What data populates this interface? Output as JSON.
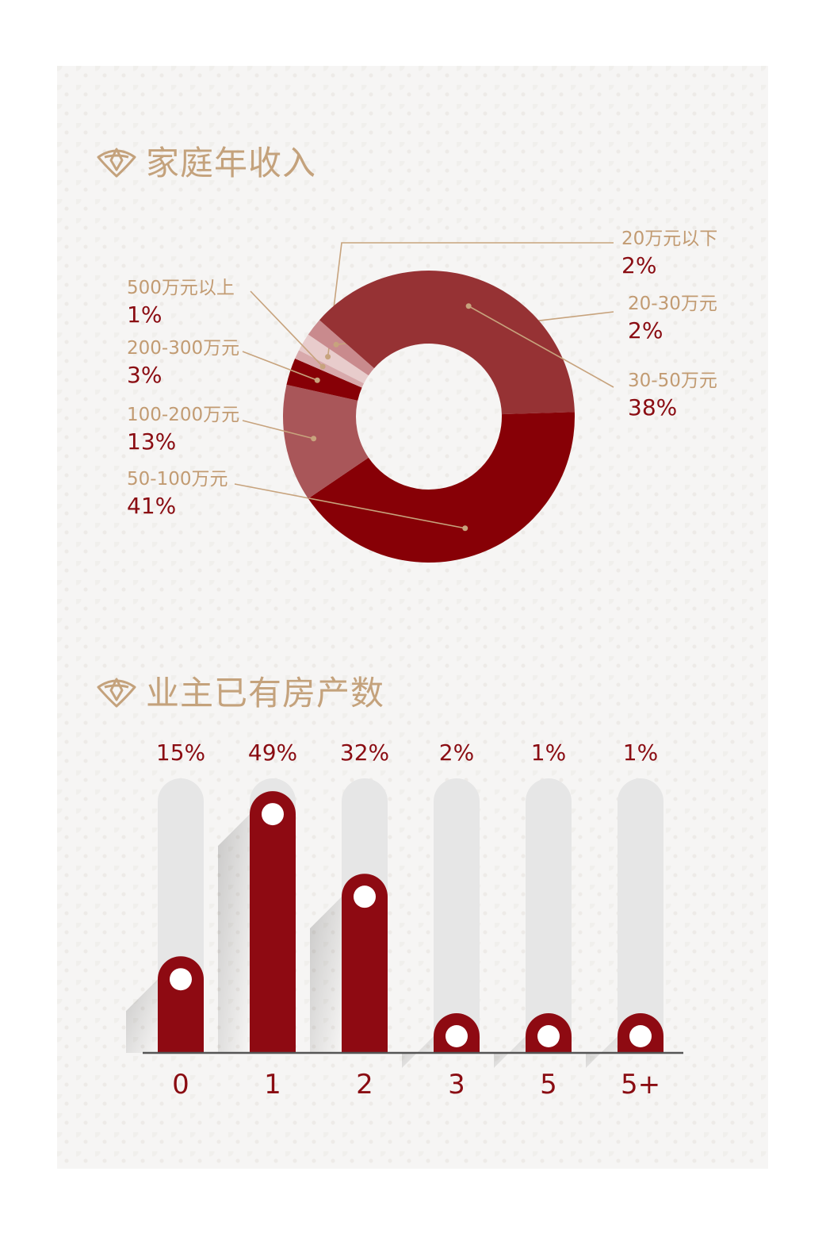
{
  "colors": {
    "accent_gold": "#c4a27c",
    "label_gold": "#c29b72",
    "dark_red": "#8a0c12",
    "track_grey": "#e6e6e6"
  },
  "section1": {
    "heading": "家庭年收入",
    "icon": "lotus-emblem-icon"
  },
  "section2": {
    "heading": "业主已有房产数",
    "icon": "lotus-emblem-icon"
  },
  "chart_data": [
    {
      "type": "pie",
      "variant": "donut",
      "categories": [
        "20万元以下",
        "20-30万元",
        "30-50万元",
        "50-100万元",
        "100-200万元",
        "200-300万元",
        "500万元以上"
      ],
      "values": [
        2,
        2,
        38,
        41,
        13,
        3,
        1
      ],
      "labels": [
        "2%",
        "2%",
        "38%",
        "41%",
        "13%",
        "3%",
        "1%"
      ],
      "colors": [
        "#e8cccc",
        "#c98a8d",
        "#963234",
        "#870006",
        "#a95659",
        "#870006",
        "#d8a9ab"
      ]
    },
    {
      "type": "bar",
      "categories": [
        "0",
        "1",
        "2",
        "3",
        "5",
        "5+"
      ],
      "values": [
        15,
        49,
        32,
        2,
        1,
        1
      ],
      "labels": [
        "15%",
        "49%",
        "32%",
        "2%",
        "1%",
        "1%"
      ]
    }
  ]
}
